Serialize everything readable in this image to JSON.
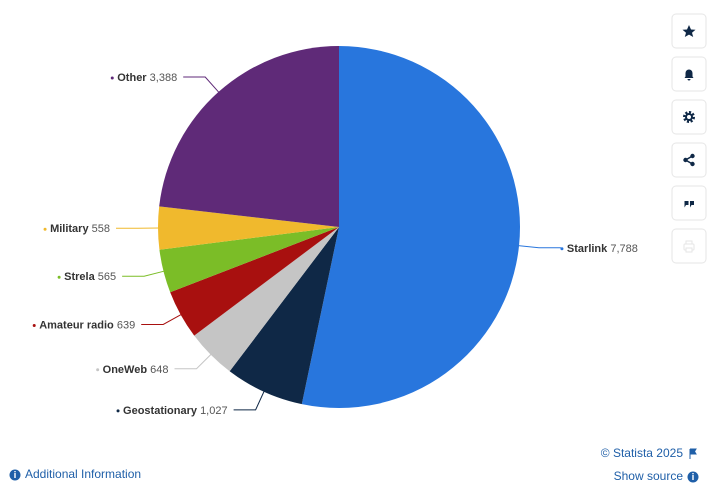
{
  "chart_data": {
    "type": "pie",
    "categories": [
      "Starlink",
      "Geostationary",
      "OneWeb",
      "Amateur radio",
      "Strela",
      "Military",
      "Other"
    ],
    "values": [
      7788,
      1027,
      648,
      639,
      565,
      558,
      3388
    ],
    "value_labels": [
      "7,788",
      "1,027",
      "648",
      "639",
      "565",
      "558",
      "3,388"
    ],
    "colors": [
      "#2876dd",
      "#0f2846",
      "#c5c5c5",
      "#a8100f",
      "#7bbd27",
      "#f0b92d",
      "#5f2a78"
    ]
  },
  "footer": {
    "copyright": "© Statista 2025",
    "show_source": "Show source",
    "additional_info": "Additional Information"
  }
}
